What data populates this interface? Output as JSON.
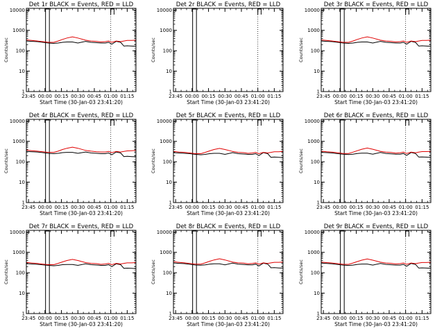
{
  "chart_data": {
    "type": "line",
    "time_axis": {
      "tick_labels": [
        "23:45",
        "00:00",
        "00:15",
        "00:30",
        "00:45",
        "01:00",
        "01:15"
      ],
      "tick_minutes": [
        0,
        15,
        30,
        45,
        60,
        75,
        90
      ],
      "range_minutes": [
        -2,
        98
      ],
      "xlabel": "Start Time (30-Jan-03 23:41:20)"
    },
    "ylabel": "Counts/sec",
    "ylim": [
      1,
      12000
    ],
    "y_tick_labels": [
      "1",
      "10",
      "100",
      "1000",
      "10000"
    ],
    "y_tick_values": [
      1,
      10,
      100,
      1000,
      10000
    ],
    "markers": {
      "dotted_vlines_minutes": [
        75,
        97
      ],
      "flag_segments": [
        {
          "x0_minutes": 15.5,
          "x1_minutes": 19,
          "level": "low"
        },
        {
          "x0_minutes": 75,
          "x1_minutes": 78,
          "level": "high"
        }
      ]
    },
    "panels": [
      {
        "title": "Det 1r BLACK = Events, RED = LLD",
        "has_data": true,
        "series": [
          {
            "name": "Events",
            "color": "#000000",
            "x": [
              -2,
              3,
              8,
              13,
              18,
              23,
              27,
              31,
              35,
              40,
              45,
              52,
              57,
              62,
              66,
              70,
              73,
              76,
              80,
              84,
              87,
              90,
              94,
              98
            ],
            "y": [
              300,
              290,
              280,
              260,
              240,
              230,
              240,
              260,
              270,
              270,
              240,
              290,
              260,
              250,
              240,
              240,
              260,
              210,
              290,
              260,
              170,
              175,
              170,
              165
            ]
          },
          {
            "name": "LLD",
            "color": "#e00000",
            "x": [
              -2,
              3,
              8,
              13,
              18,
              23,
              27,
              31,
              35,
              40,
              45,
              52,
              57,
              62,
              66,
              70,
              73,
              76,
              80,
              84,
              87,
              90,
              94,
              98
            ],
            "y": [
              340,
              320,
              300,
              280,
              260,
              260,
              300,
              360,
              420,
              480,
              420,
              330,
              300,
              290,
              270,
              280,
              300,
              260,
              300,
              280,
              300,
              320,
              320,
              330
            ]
          }
        ]
      },
      {
        "title": "Det 2r BLACK = Events, RED = LLD",
        "has_data": false,
        "series": []
      },
      {
        "title": "Det 3r BLACK = Events, RED = LLD",
        "has_data": true,
        "series": [
          {
            "name": "Events",
            "color": "#000000",
            "x": [
              -2,
              3,
              8,
              13,
              18,
              23,
              27,
              31,
              35,
              40,
              45,
              52,
              57,
              62,
              66,
              70,
              73,
              76,
              80,
              84,
              87,
              90,
              94,
              98
            ],
            "y": [
              300,
              290,
              280,
              260,
              240,
              230,
              240,
              260,
              270,
              270,
              240,
              290,
              260,
              250,
              240,
              240,
              260,
              210,
              290,
              260,
              170,
              175,
              170,
              165
            ]
          },
          {
            "name": "LLD",
            "color": "#e00000",
            "x": [
              -2,
              3,
              8,
              13,
              18,
              23,
              27,
              31,
              35,
              40,
              45,
              52,
              57,
              62,
              66,
              70,
              73,
              76,
              80,
              84,
              87,
              90,
              94,
              98
            ],
            "y": [
              340,
              320,
              300,
              280,
              260,
              260,
              300,
              360,
              420,
              480,
              420,
              330,
              300,
              290,
              270,
              280,
              300,
              260,
              300,
              280,
              300,
              320,
              320,
              330
            ]
          }
        ]
      },
      {
        "title": "Det 4r BLACK = Events, RED = LLD",
        "has_data": true,
        "series": [
          {
            "name": "Events",
            "color": "#000000",
            "x": [
              -2,
              3,
              8,
              13,
              18,
              23,
              27,
              31,
              35,
              40,
              45,
              52,
              57,
              62,
              66,
              70,
              73,
              76,
              80,
              84,
              87,
              90,
              94,
              98
            ],
            "y": [
              320,
              310,
              300,
              280,
              260,
              250,
              260,
              280,
              290,
              290,
              260,
              300,
              270,
              260,
              250,
              250,
              270,
              220,
              300,
              270,
              180,
              185,
              180,
              175
            ]
          },
          {
            "name": "LLD",
            "color": "#e00000",
            "x": [
              -2,
              3,
              8,
              13,
              18,
              23,
              27,
              31,
              35,
              40,
              45,
              52,
              57,
              62,
              66,
              70,
              73,
              76,
              80,
              84,
              87,
              90,
              94,
              98
            ],
            "y": [
              370,
              350,
              330,
              310,
              290,
              290,
              330,
              400,
              460,
              520,
              460,
              360,
              330,
              310,
              300,
              300,
              320,
              280,
              320,
              300,
              320,
              340,
              350,
              360
            ]
          }
        ]
      },
      {
        "title": "Det 5r BLACK = Events, RED = LLD",
        "has_data": true,
        "series": [
          {
            "name": "Events",
            "color": "#000000",
            "x": [
              -2,
              3,
              8,
              13,
              18,
              23,
              27,
              31,
              35,
              40,
              45,
              52,
              57,
              62,
              66,
              70,
              73,
              76,
              80,
              84,
              87,
              90,
              94,
              98
            ],
            "y": [
              280,
              270,
              260,
              250,
              230,
              220,
              230,
              250,
              260,
              260,
              230,
              280,
              250,
              240,
              230,
              230,
              250,
              200,
              280,
              250,
              165,
              170,
              165,
              160
            ]
          },
          {
            "name": "LLD",
            "color": "#e00000",
            "x": [
              -2,
              3,
              8,
              13,
              18,
              23,
              27,
              31,
              35,
              40,
              45,
              52,
              57,
              62,
              66,
              70,
              73,
              76,
              80,
              84,
              87,
              90,
              94,
              98
            ],
            "y": [
              320,
              300,
              290,
              270,
              250,
              250,
              290,
              340,
              400,
              450,
              400,
              320,
              290,
              280,
              260,
              270,
              290,
              250,
              290,
              270,
              290,
              310,
              310,
              320
            ]
          }
        ]
      },
      {
        "title": "Det 6r BLACK = Events, RED = LLD",
        "has_data": true,
        "series": [
          {
            "name": "Events",
            "color": "#000000",
            "x": [
              -2,
              3,
              8,
              13,
              18,
              23,
              27,
              31,
              35,
              40,
              45,
              52,
              57,
              62,
              66,
              70,
              73,
              76,
              80,
              84,
              87,
              90,
              94,
              98
            ],
            "y": [
              290,
              280,
              270,
              250,
              235,
              225,
              235,
              255,
              265,
              265,
              235,
              285,
              255,
              245,
              235,
              235,
              255,
              205,
              285,
              255,
              170,
              172,
              168,
              162
            ]
          },
          {
            "name": "LLD",
            "color": "#e00000",
            "x": [
              -2,
              3,
              8,
              13,
              18,
              23,
              27,
              31,
              35,
              40,
              45,
              52,
              57,
              62,
              66,
              70,
              73,
              76,
              80,
              84,
              87,
              90,
              94,
              98
            ],
            "y": [
              330,
              310,
              295,
              275,
              255,
              255,
              295,
              350,
              410,
              470,
              410,
              325,
              295,
              285,
              265,
              275,
              295,
              255,
              295,
              275,
              295,
              315,
              315,
              325
            ]
          }
        ]
      },
      {
        "title": "Det 7r BLACK = Events, RED = LLD",
        "has_data": true,
        "series": [
          {
            "name": "Events",
            "color": "#000000",
            "x": [
              -2,
              3,
              8,
              13,
              18,
              23,
              27,
              31,
              35,
              40,
              45,
              52,
              57,
              62,
              66,
              70,
              73,
              76,
              80,
              84,
              87,
              90,
              94,
              98
            ],
            "y": [
              280,
              270,
              260,
              245,
              230,
              220,
              230,
              250,
              255,
              255,
              230,
              275,
              250,
              240,
              230,
              230,
              250,
              200,
              275,
              250,
              165,
              168,
              165,
              160
            ]
          },
          {
            "name": "LLD",
            "color": "#e00000",
            "x": [
              -2,
              3,
              8,
              13,
              18,
              23,
              27,
              31,
              35,
              40,
              45,
              52,
              57,
              62,
              66,
              70,
              73,
              76,
              80,
              84,
              87,
              90,
              94,
              98
            ],
            "y": [
              320,
              300,
              285,
              265,
              250,
              250,
              290,
              340,
              400,
              450,
              400,
              315,
              290,
              280,
              260,
              270,
              290,
              250,
              290,
              270,
              290,
              305,
              305,
              315
            ]
          }
        ]
      },
      {
        "title": "Det 8r BLACK = Events, RED = LLD",
        "has_data": true,
        "series": [
          {
            "name": "Events",
            "color": "#000000",
            "x": [
              -2,
              3,
              8,
              13,
              18,
              23,
              27,
              31,
              35,
              40,
              45,
              52,
              57,
              62,
              66,
              70,
              73,
              76,
              80,
              84,
              87,
              90,
              94,
              98
            ],
            "y": [
              300,
              290,
              280,
              260,
              240,
              235,
              245,
              265,
              275,
              275,
              245,
              295,
              265,
              255,
              245,
              245,
              265,
              215,
              295,
              265,
              175,
              178,
              172,
              168
            ]
          },
          {
            "name": "LLD",
            "color": "#e00000",
            "x": [
              -2,
              3,
              8,
              13,
              18,
              23,
              27,
              31,
              35,
              40,
              45,
              52,
              57,
              62,
              66,
              70,
              73,
              76,
              80,
              84,
              87,
              90,
              94,
              98
            ],
            "y": [
              345,
              325,
              305,
              285,
              265,
              265,
              305,
              365,
              425,
              485,
              425,
              335,
              305,
              295,
              275,
              285,
              305,
              265,
              305,
              285,
              305,
              325,
              325,
              335
            ]
          }
        ]
      },
      {
        "title": "Det 9r BLACK = Events, RED = LLD",
        "has_data": true,
        "series": [
          {
            "name": "Events",
            "color": "#000000",
            "x": [
              -2,
              3,
              8,
              13,
              18,
              23,
              27,
              31,
              35,
              40,
              45,
              52,
              57,
              62,
              66,
              70,
              73,
              76,
              80,
              84,
              87,
              90,
              94,
              98
            ],
            "y": [
              295,
              285,
              275,
              255,
              238,
              228,
              238,
              258,
              268,
              268,
              238,
              288,
              258,
              248,
              238,
              238,
              258,
              208,
              288,
              258,
              170,
              174,
              170,
              165
            ]
          },
          {
            "name": "LLD",
            "color": "#e00000",
            "x": [
              -2,
              3,
              8,
              13,
              18,
              23,
              27,
              31,
              35,
              40,
              45,
              52,
              57,
              62,
              66,
              70,
              73,
              76,
              80,
              84,
              87,
              90,
              94,
              98
            ],
            "y": [
              335,
              315,
              300,
              280,
              260,
              260,
              300,
              355,
              415,
              475,
              415,
              330,
              300,
              290,
              270,
              280,
              300,
              260,
              300,
              280,
              300,
              318,
              318,
              328
            ]
          }
        ]
      }
    ]
  }
}
